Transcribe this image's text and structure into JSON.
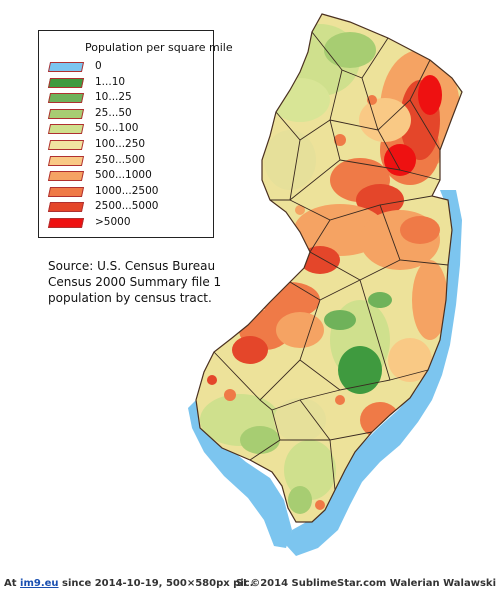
{
  "legend": {
    "title": "Population per square mile",
    "items": [
      {
        "label": "0",
        "color": "#7cc5ef"
      },
      {
        "label": "1...10",
        "color": "#3f9a3f"
      },
      {
        "label": "10...25",
        "color": "#6fb25a"
      },
      {
        "label": "25...50",
        "color": "#a7cd72"
      },
      {
        "label": "50...100",
        "color": "#cfe08d"
      },
      {
        "label": "100...250",
        "color": "#f1e4a0"
      },
      {
        "label": "250...500",
        "color": "#f9c985"
      },
      {
        "label": "500...1000",
        "color": "#f5a363"
      },
      {
        "label": "1000...2500",
        "color": "#ef7a47"
      },
      {
        "label": "2500...5000",
        "color": "#e4462a"
      },
      {
        "label": ">5000",
        "color": "#ee1111"
      }
    ]
  },
  "source": {
    "line1": "Source: U.S. Census Bureau",
    "line2": "Census 2000 Summary file 1",
    "line3": "population by census tract."
  },
  "footer": {
    "prefix": "At ",
    "site": "im9.eu",
    "suffix": " since 2014-10-19, 500×580px pic.",
    "credit": "SI ©2014 SublimeStar.com Walerian Walawski"
  },
  "colors": {
    "water": "#7cc5ef",
    "border": "#4a3020",
    "background": "#ffffff"
  }
}
